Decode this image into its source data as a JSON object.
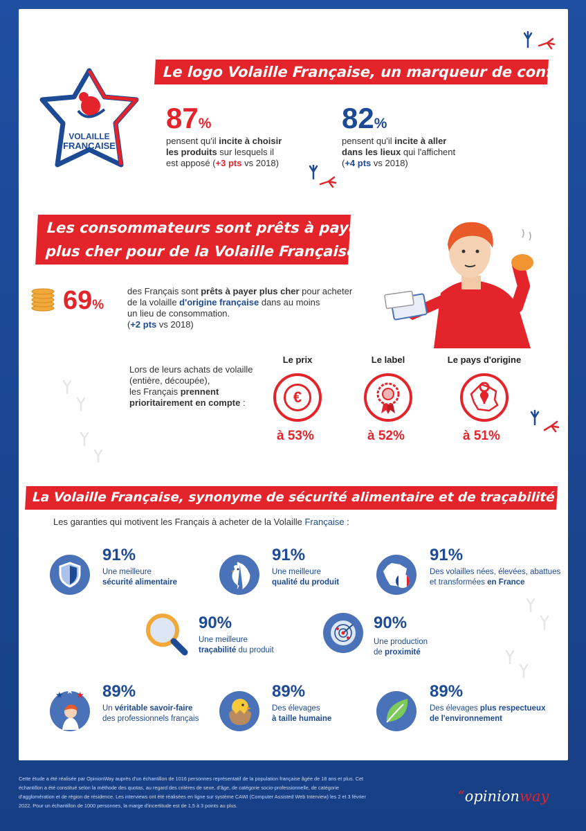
{
  "brand_logo": {
    "line1": "VOLAILLE",
    "line2": "FRANÇAISE"
  },
  "section1": {
    "title": "Le logo Volaille Française, un marqueur de confiance",
    "stat1": {
      "value": "87",
      "pct": "%",
      "l1_pre": "pensent qu'il ",
      "l1_bold": "incite à choisir",
      "l2_bold": "les produits",
      "l2_post": " sur lesquels il",
      "l3": "est apposé (",
      "l3_bold": "+3 pts",
      "l3_post": " vs 2018)"
    },
    "stat2": {
      "value": "82",
      "pct": "%",
      "l1_pre": "pensent qu'il ",
      "l1_bold": "incite à aller",
      "l2_bold": "dans les lieux",
      "l2_post": " qui l'affichent",
      "l3": "(",
      "l3_bold": "+4 pts",
      "l3_post": " vs 2018)"
    }
  },
  "section2": {
    "title_line1": "Les consommateurs sont prêts à payer",
    "title_line2": "plus cher pour de la Volaille Française",
    "stat": {
      "value": "69",
      "pct": "%",
      "l1_pre": "des Français sont ",
      "l1_bold": "prêts à payer plus cher",
      "l1_post": " pour acheter",
      "l2_pre": "de la volaille ",
      "l2_bold": "d'origine française",
      "l2_post": " dans au moins",
      "l3": "un lieu de consommation.",
      "l4": "(",
      "l4_bold": "+2 pts",
      "l4_post": " vs 2018)"
    },
    "criteria_intro": {
      "l1": "Lors de leurs achats de volaille",
      "l2": "(entière, découpée),",
      "l3_pre": "les Français ",
      "l3_bold": "prennent",
      "l4_bold": "prioritairement en compte",
      "l4_post": " :"
    },
    "criteria": [
      {
        "label": "Le prix",
        "value": "à 53%",
        "symbol": "€"
      },
      {
        "label": "Le label",
        "value": "à 52%"
      },
      {
        "label": "Le pays d'origine",
        "value": "à 51%"
      }
    ]
  },
  "section3": {
    "title": "La Volaille Française, synonyme de sécurité alimentaire et de traçabilité",
    "intro_pre": "Les garanties qui motivent les Français à acheter de la Volaille ",
    "intro_bold": "Française",
    "intro_post": " :",
    "items": [
      {
        "value": "91%",
        "l1": "Une meilleure",
        "l2_bold": "sécurité alimentaire",
        "l2_post": ""
      },
      {
        "value": "91%",
        "l1": "Une meilleure",
        "l2_bold": "qualité du produit",
        "l2_post": ""
      },
      {
        "value": "91%",
        "l1": "Des volailles nées, élevées, abattues",
        "l2_pre": "et transformées ",
        "l2_bold": "en France"
      },
      {
        "value": "90%",
        "l1": "Une meilleure",
        "l2_bold": "traçabilité",
        "l2_post": " du produit"
      },
      {
        "value": "90%",
        "l1": "Une production",
        "l2_pre": "de ",
        "l2_bold": "proximité"
      },
      {
        "value": "89%",
        "l1_pre": "Un ",
        "l1_bold": "véritable savoir-faire",
        "l2": "des professionnels français"
      },
      {
        "value": "89%",
        "l1": "Des élevages",
        "l2_bold": "à taille humaine"
      },
      {
        "value": "89%",
        "l1_pre": "Des élevages ",
        "l1_bold": "plus respectueux",
        "l2_bold": "de l'environnement"
      }
    ]
  },
  "footer": {
    "l1": "Cette étude a été réalisée par OpinionWay auprès d'un échantillon de 1016 personnes représentatif de la population française âgée de 18 ans et plus. Cet",
    "l2": "échantillon a été constitué selon la méthode des quotas, au regard des critères de sexe, d'âge, de catégorie socio-professionnelle, de catégorie",
    "l3": "d'agglomération et de région de résidence. Les interviews ont été réalisées en ligne sur système CAWI (Computer Assisted Web Interview) les 2 et 3 février",
    "l4": "2022. Pour un échantillon de 1000 personnes, la marge d'incertitude est de 1,5 à 3 points au plus."
  },
  "opinionway": {
    "quote": "“",
    "opinion": "opinion",
    "way": "way"
  },
  "colors": {
    "red": "#e3242b",
    "blue": "#1d4a95",
    "icon_blue": "#4a72b8"
  }
}
